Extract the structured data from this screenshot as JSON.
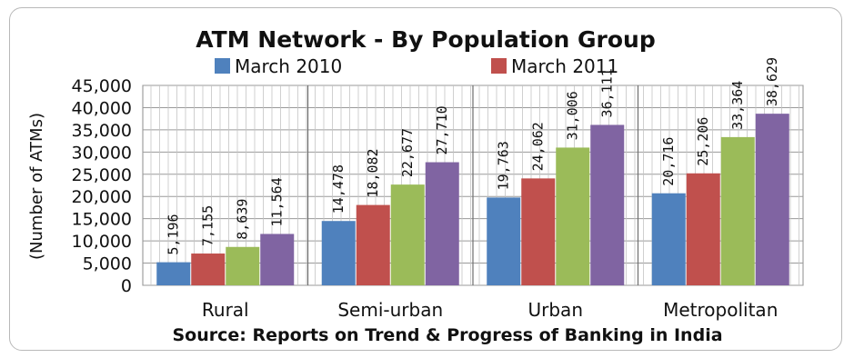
{
  "chart_data": {
    "type": "bar",
    "title": "ATM Network - By Population Group",
    "ylabel": "(Number of ATMs)",
    "xlabel": "",
    "source": "Source: Reports on Trend & Progress of Banking in India",
    "legend_position": "top",
    "ylim": [
      0,
      45000
    ],
    "y_ticks": [
      "0",
      "5,000",
      "10,000",
      "15,000",
      "20,000",
      "25,000",
      "30,000",
      "35,000",
      "40,000",
      "45,000"
    ],
    "categories": [
      "Rural",
      "Semi-urban",
      "Urban",
      "Metropolitan"
    ],
    "series": [
      {
        "name": "March 2010",
        "color": "#4f81bd",
        "values": [
          5196,
          14478,
          19763,
          20716
        ],
        "labels": [
          "5,196",
          "14,478",
          "19,763",
          "20,716"
        ]
      },
      {
        "name": "March 2011",
        "color": "#c0504d",
        "values": [
          7155,
          18082,
          24062,
          25206
        ],
        "labels": [
          "7,155",
          "18,082",
          "24,062",
          "25,206"
        ]
      },
      {
        "color": "#9bbb59",
        "values": [
          8639,
          22677,
          31006,
          33364
        ],
        "labels": [
          "8,639",
          "22,677",
          "31,006",
          "33,364"
        ]
      },
      {
        "color": "#8064a2",
        "values": [
          11564,
          27710,
          36111,
          38629
        ],
        "labels": [
          "11,564",
          "27,710",
          "36,111",
          "38,629"
        ]
      }
    ],
    "grid": true
  }
}
